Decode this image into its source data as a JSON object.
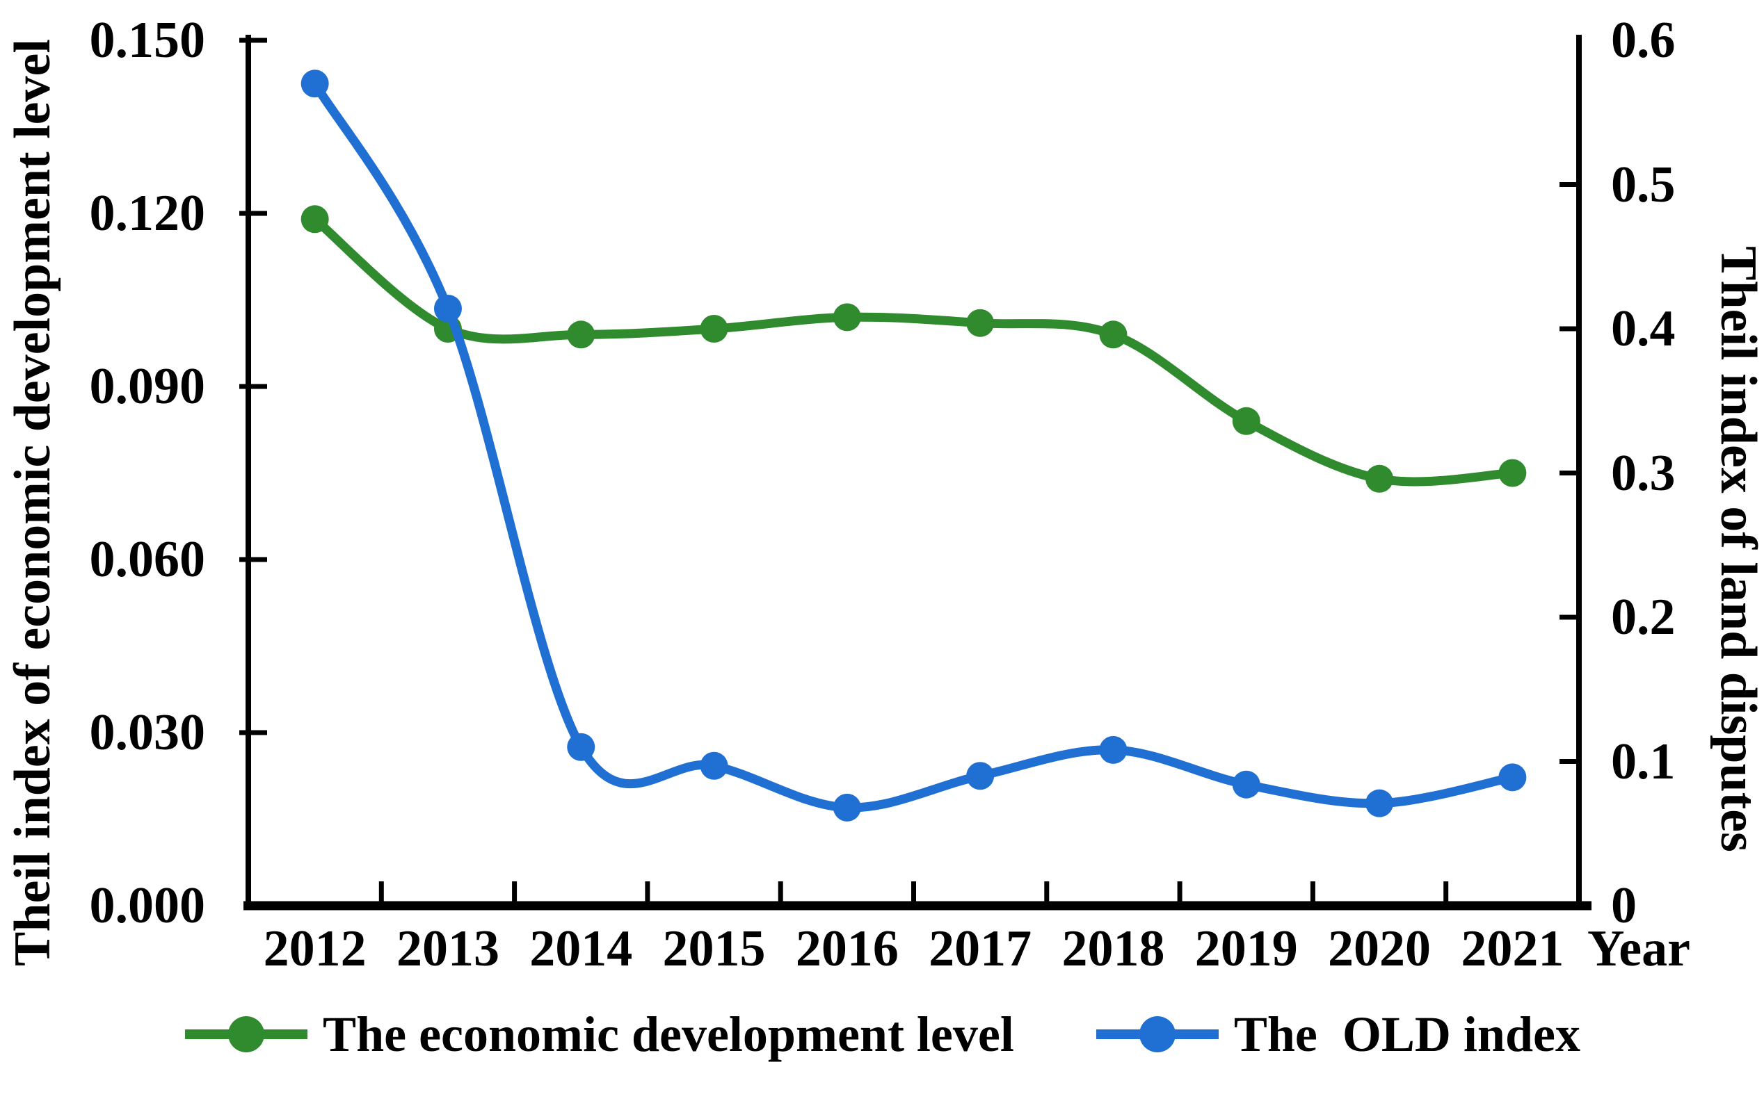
{
  "chart_data": {
    "type": "line",
    "smooth": true,
    "grid": false,
    "legend_position": "bottom",
    "categories": [
      "2012",
      "2013",
      "2014",
      "2015",
      "2016",
      "2017",
      "2018",
      "2019",
      "2020",
      "2021"
    ],
    "xlabel": "Year",
    "ylabel_left": "Theil index of economic development level",
    "ylabel_right": "Theil index of land disputes",
    "axes": {
      "left": {
        "min": 0,
        "max": 0.15,
        "step": 0.03,
        "tick_labels": [
          "0.000",
          "0.030",
          "0.060",
          "0.090",
          "0.120",
          "0.150"
        ]
      },
      "right": {
        "min": 0,
        "max": 0.6,
        "step": 0.1,
        "tick_labels": [
          "0",
          "0.1",
          "0.2",
          "0.3",
          "0.4",
          "0.5",
          "0.6"
        ]
      }
    },
    "series": [
      {
        "id": "economic-development-level",
        "name": "The economic development level",
        "axis": "left",
        "color": "#2f8b2d",
        "marker": "circle",
        "values": [
          0.119,
          0.1,
          0.099,
          0.1,
          0.102,
          0.101,
          0.099,
          0.084,
          0.074,
          0.075
        ]
      },
      {
        "id": "old-index",
        "name": "The  OLD index",
        "axis": "right",
        "color": "#1f70d2",
        "marker": "circle",
        "values": [
          0.57,
          0.414,
          0.11,
          0.097,
          0.068,
          0.09,
          0.108,
          0.084,
          0.071,
          0.089
        ]
      }
    ],
    "axis_color": "#000000"
  }
}
